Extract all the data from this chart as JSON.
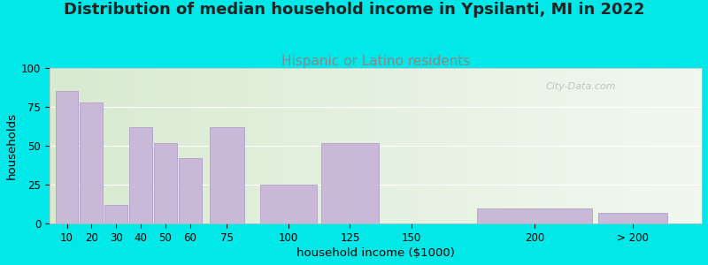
{
  "title": "Distribution of median household income in Ypsilanti, MI in 2022",
  "subtitle": "Hispanic or Latino residents",
  "xlabel": "household income ($1000)",
  "ylabel": "households",
  "bar_labels": [
    "10",
    "20",
    "30",
    "40",
    "50",
    "60",
    "75",
    "100",
    "125",
    "150",
    "200",
    "> 200"
  ],
  "bar_heights": [
    85,
    78,
    12,
    62,
    52,
    42,
    62,
    25,
    52,
    0,
    10,
    7
  ],
  "bar_color": "#c9b8d8",
  "bar_edge_color": "#b0a0c8",
  "background_outer": "#00e8e8",
  "background_inner_left": "#d8ead0",
  "background_inner_right": "#f2f8f0",
  "title_fontsize": 13,
  "subtitle_fontsize": 11,
  "subtitle_color": "#888888",
  "ylim": [
    0,
    100
  ],
  "yticks": [
    0,
    25,
    50,
    75,
    100
  ],
  "watermark": "City-Data.com",
  "x_positions": [
    10,
    20,
    30,
    40,
    50,
    60,
    75,
    100,
    125,
    150,
    200,
    240
  ],
  "bar_widths": [
    10,
    10,
    10,
    10,
    10,
    10,
    15,
    25,
    25,
    50,
    50,
    30
  ],
  "xlim_left": 3,
  "xlim_right": 268
}
